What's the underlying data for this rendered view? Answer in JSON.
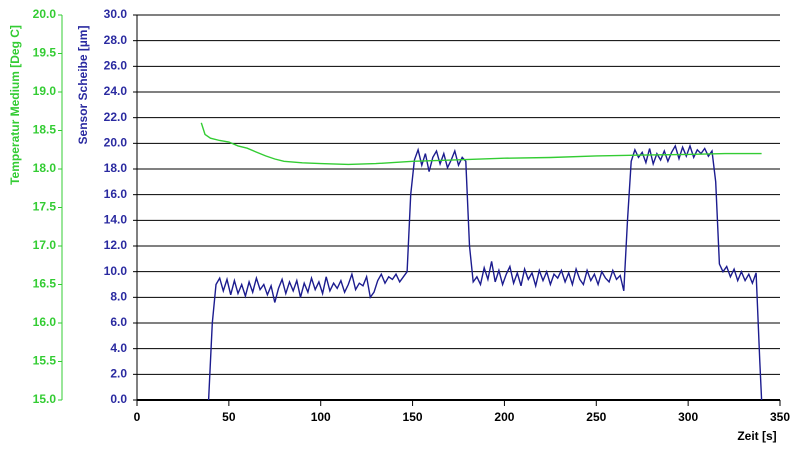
{
  "chart_data": {
    "type": "line",
    "xlabel": "Zeit [s]",
    "ylabel": "Sensor Scheibe [µm]",
    "y2label": "Temperatur Medium [Deg C]",
    "xlim": [
      0,
      350
    ],
    "xticks": [
      0,
      50,
      100,
      150,
      200,
      250,
      300,
      350
    ],
    "ylim": [
      0,
      30
    ],
    "yticks": [
      {
        "value": 0,
        "label": "0.0"
      },
      {
        "value": 2,
        "label": "2.0"
      },
      {
        "value": 4,
        "label": "4.0"
      },
      {
        "value": 6,
        "label": "6.0"
      },
      {
        "value": 8,
        "label": "8.0"
      },
      {
        "value": 10,
        "label": "10.0"
      },
      {
        "value": 12,
        "label": "12.0"
      },
      {
        "value": 14,
        "label": "14.0"
      },
      {
        "value": 16,
        "label": "16.0"
      },
      {
        "value": 18,
        "label": "18.0"
      },
      {
        "value": 20,
        "label": "20.0"
      },
      {
        "value": 22,
        "label": "22.0"
      },
      {
        "value": 24,
        "label": "24.0"
      },
      {
        "value": 26,
        "label": "26.0"
      },
      {
        "value": 28,
        "label": "28.0"
      },
      {
        "value": 30,
        "label": "30.0"
      }
    ],
    "y2lim": [
      15,
      20
    ],
    "y2ticks": [
      {
        "value": 15,
        "label": "15.0"
      },
      {
        "value": 15.5,
        "label": "15.5"
      },
      {
        "value": 16,
        "label": "16.0"
      },
      {
        "value": 16.5,
        "label": "16.5"
      },
      {
        "value": 17,
        "label": "17.0"
      },
      {
        "value": 17.5,
        "label": "17.5"
      },
      {
        "value": 18,
        "label": "18.0"
      },
      {
        "value": 18.5,
        "label": "18.5"
      },
      {
        "value": 19,
        "label": "19.0"
      },
      {
        "value": 19.5,
        "label": "19.5"
      },
      {
        "value": 20,
        "label": "20.0"
      }
    ],
    "grid": true,
    "series": [
      {
        "color": "#1c1c8f",
        "axis": "y",
        "x": [
          39,
          41,
          43,
          45,
          47,
          49,
          51,
          53,
          55,
          57,
          59,
          61,
          63,
          65,
          67,
          69,
          71,
          73,
          75,
          77,
          79,
          81,
          83,
          85,
          87,
          89,
          91,
          93,
          95,
          97,
          99,
          101,
          103,
          105,
          107,
          109,
          111,
          113,
          115,
          117,
          119,
          121,
          123,
          125,
          127,
          129,
          131,
          133,
          135,
          137,
          139,
          141,
          143,
          145,
          147,
          149,
          151,
          153,
          155,
          157,
          159,
          161,
          163,
          165,
          167,
          169,
          171,
          173,
          175,
          177,
          179,
          181,
          183,
          185,
          187,
          189,
          191,
          193,
          195,
          197,
          199,
          201,
          203,
          205,
          207,
          209,
          211,
          213,
          215,
          217,
          219,
          221,
          223,
          225,
          227,
          229,
          231,
          233,
          235,
          237,
          239,
          241,
          243,
          245,
          247,
          249,
          251,
          253,
          255,
          257,
          259,
          261,
          263,
          265,
          267,
          269,
          271,
          273,
          275,
          277,
          279,
          281,
          283,
          285,
          287,
          289,
          291,
          293,
          295,
          297,
          299,
          301,
          303,
          305,
          307,
          309,
          311,
          313,
          315,
          317,
          319,
          321,
          323,
          325,
          327,
          329,
          331,
          333,
          335,
          337,
          339,
          340
        ],
        "values": [
          0,
          6,
          9,
          9.5,
          8.5,
          9.4,
          8.2,
          9.3,
          8.3,
          9.0,
          8.1,
          9.2,
          8.4,
          9.5,
          8.6,
          9.0,
          8.2,
          8.9,
          7.6,
          8.7,
          9.4,
          8.3,
          9.2,
          8.5,
          9.3,
          8.0,
          9.1,
          8.4,
          9.5,
          8.6,
          9.2,
          8.3,
          9.6,
          8.5,
          9.1,
          8.7,
          9.3,
          8.4,
          9.0,
          9.8,
          8.6,
          9.1,
          8.9,
          9.6,
          8.0,
          8.4,
          9.3,
          9.8,
          9.1,
          9.6,
          9.4,
          9.8,
          9.2,
          9.6,
          10.0,
          16,
          18.7,
          19.5,
          18.3,
          19.2,
          17.8,
          18.9,
          19.4,
          18.4,
          19.2,
          18.1,
          18.7,
          19.4,
          18.3,
          18.9,
          18.6,
          12,
          9.2,
          9.6,
          9.0,
          10.3,
          9.4,
          10.8,
          9.2,
          10.1,
          9.0,
          9.8,
          10.4,
          9.1,
          9.9,
          8.9,
          10.2,
          9.4,
          9.9,
          8.9,
          10.1,
          9.3,
          10.0,
          9.0,
          9.8,
          9.5,
          10.1,
          9.2,
          9.9,
          9.0,
          10.2,
          9.4,
          9.0,
          10.1,
          9.3,
          9.8,
          9.0,
          10.0,
          9.5,
          9.2,
          10.1,
          9.4,
          9.7,
          8.5,
          14,
          18.6,
          19.5,
          18.9,
          19.3,
          18.5,
          19.6,
          18.4,
          19.2,
          18.7,
          19.4,
          18.6,
          19.3,
          19.8,
          18.8,
          19.7,
          19.0,
          19.8,
          18.9,
          19.5,
          19.2,
          19.6,
          19.0,
          19.4,
          17,
          10.6,
          10.0,
          10.4,
          9.6,
          10.2,
          9.3,
          10.0,
          9.3,
          9.8,
          9.1,
          9.9,
          3,
          0
        ]
      },
      {
        "color": "#33cc33",
        "axis": "y2",
        "x": [
          35,
          37,
          40,
          45,
          50,
          55,
          60,
          65,
          70,
          75,
          80,
          90,
          100,
          115,
          130,
          150,
          175,
          200,
          225,
          250,
          275,
          300,
          320,
          340
        ],
        "values": [
          18.6,
          18.45,
          18.4,
          18.37,
          18.35,
          18.3,
          18.27,
          18.22,
          18.17,
          18.13,
          18.1,
          18.08,
          18.07,
          18.06,
          18.07,
          18.1,
          18.12,
          18.14,
          18.15,
          18.17,
          18.18,
          18.19,
          18.2,
          18.2
        ]
      }
    ]
  }
}
